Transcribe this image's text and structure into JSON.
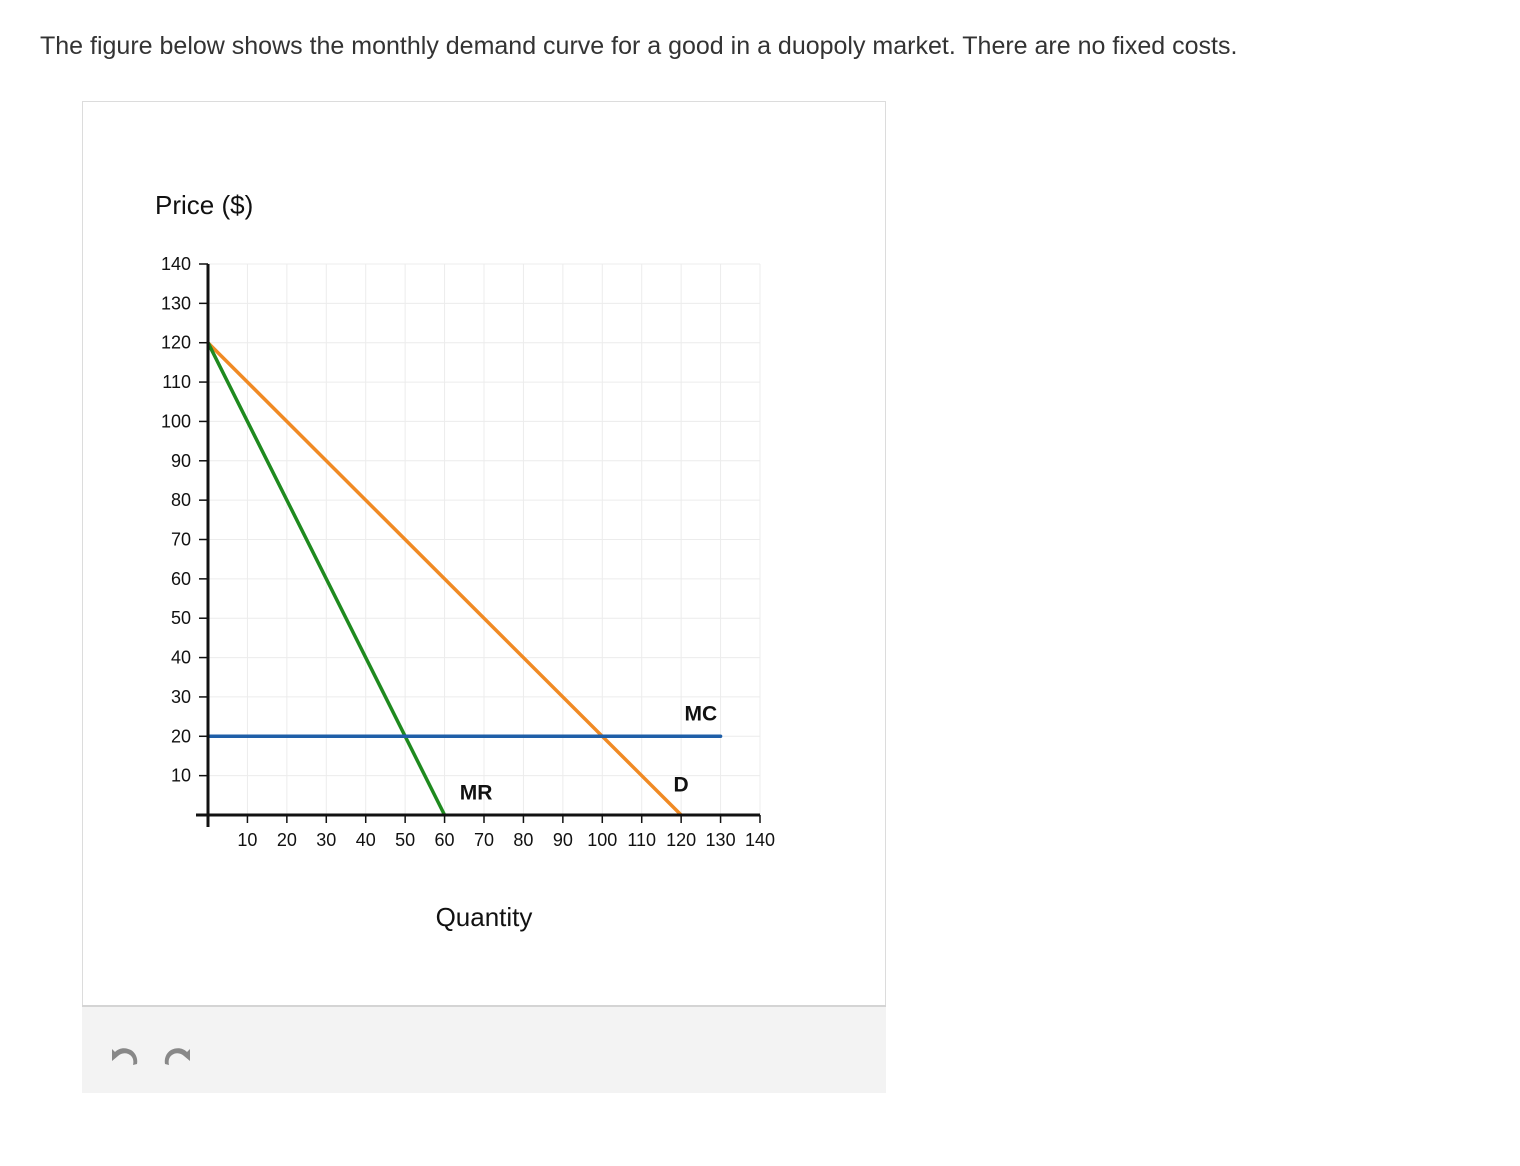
{
  "question": {
    "text": "The figure below shows the monthly demand curve for a good in a duopoly market. There are no fixed costs."
  },
  "toolbar": {
    "undo_icon": "undo-icon",
    "redo_icon": "redo-icon"
  },
  "chart_data": {
    "type": "line",
    "ylabel": "Price ($)",
    "xlabel": "Quantity",
    "xlim": [
      0,
      140
    ],
    "ylim": [
      0,
      140
    ],
    "x_ticks": [
      10,
      20,
      30,
      40,
      50,
      60,
      70,
      80,
      90,
      100,
      110,
      120,
      130,
      140
    ],
    "y_ticks": [
      10,
      20,
      30,
      40,
      50,
      60,
      70,
      80,
      90,
      100,
      110,
      120,
      130,
      140
    ],
    "grid": true,
    "series": [
      {
        "name": "D",
        "color": "#f08a24",
        "points": [
          [
            0,
            120
          ],
          [
            120,
            0
          ]
        ]
      },
      {
        "name": "MR",
        "color": "#1f8a1f",
        "points": [
          [
            0,
            120
          ],
          [
            60,
            0
          ]
        ]
      },
      {
        "name": "MC",
        "color": "#1f5fa8",
        "points": [
          [
            0,
            20
          ],
          [
            130,
            20
          ]
        ]
      }
    ],
    "labels": [
      {
        "text": "MC",
        "x": 125,
        "y": 24
      },
      {
        "text": "MR",
        "x": 68,
        "y": 4
      },
      {
        "text": "D",
        "x": 120,
        "y": 6
      }
    ]
  }
}
